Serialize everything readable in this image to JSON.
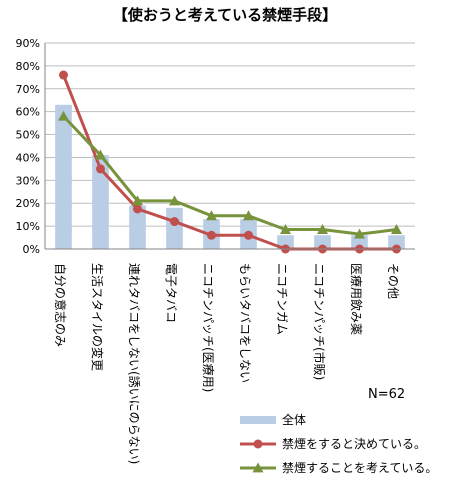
{
  "chart_data": {
    "type": "bar",
    "title": "【使おうと考えている禁煙手段】",
    "categories": [
      "自分の意志のみ",
      "生活スタイルの変更",
      "連れタバコをしない(誘いにのらない)",
      "電子タバコ",
      "ニコチンパッチ(医療用)",
      "もらいタバコをしない",
      "ニコチンガム",
      "ニコチンパッチ(市販)",
      "医療用飲み薬",
      "その他"
    ],
    "y_tick_labels": [
      "0%",
      "10%",
      "20%",
      "30%",
      "40%",
      "50%",
      "60%",
      "70%",
      "80%",
      "90%"
    ],
    "ylim": [
      0,
      90
    ],
    "grid": true,
    "series": [
      {
        "name": "全体",
        "type": "bar",
        "color": "#b9cde5",
        "values": [
          63,
          41,
          19,
          18,
          13,
          13,
          6,
          6,
          6,
          6
        ]
      },
      {
        "name": "禁煙をすると決めている。",
        "type": "line",
        "marker": "circle",
        "color": "#c0504d",
        "values": [
          76,
          35,
          17.5,
          12,
          6,
          6,
          0,
          0,
          0,
          0
        ]
      },
      {
        "name": "禁煙することを考えている。",
        "type": "line",
        "marker": "triangle",
        "color": "#77933c",
        "values": [
          58,
          41,
          21,
          21,
          14.5,
          14.5,
          8.5,
          8.5,
          6.5,
          8.5
        ]
      }
    ],
    "annotation": "N=62",
    "legend_position": "bottom-right"
  }
}
